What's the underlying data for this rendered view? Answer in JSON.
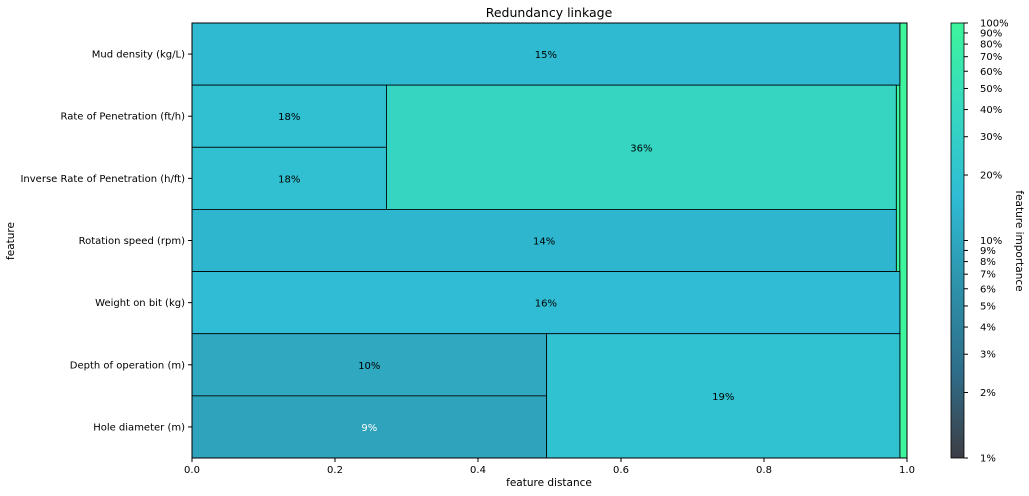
{
  "chart_data": {
    "type": "heatmap",
    "title": "Redundancy linkage",
    "xlabel": "feature distance",
    "ylabel": "feature",
    "xlim": [
      0,
      1
    ],
    "x_ticks": [
      "0.0",
      "0.2",
      "0.4",
      "0.6",
      "0.8",
      "1.0"
    ],
    "features": [
      "Mud density (kg/L)",
      "Rate of Penetration (ft/h)",
      "Inverse Rate of Penetration (h/ft)",
      "Rotation speed (rpm)",
      "Weight on bit (kg)",
      "Depth of operation (m)",
      "Hole diameter (m)"
    ],
    "blocks": [
      {
        "label": "15%",
        "importance": 15,
        "x0": 0.0,
        "x1": 0.99,
        "row_start": 0,
        "row_end": 0
      },
      {
        "label": "18%",
        "importance": 18,
        "x0": 0.0,
        "x1": 0.272,
        "row_start": 1,
        "row_end": 1
      },
      {
        "label": "18%",
        "importance": 18,
        "x0": 0.0,
        "x1": 0.272,
        "row_start": 2,
        "row_end": 2
      },
      {
        "label": "36%",
        "importance": 36,
        "x0": 0.272,
        "x1": 0.985,
        "row_start": 1,
        "row_end": 2
      },
      {
        "label": "14%",
        "importance": 14,
        "x0": 0.0,
        "x1": 0.985,
        "row_start": 3,
        "row_end": 3
      },
      {
        "label": "16%",
        "importance": 16,
        "x0": 0.0,
        "x1": 0.99,
        "row_start": 4,
        "row_end": 4
      },
      {
        "label": "10%",
        "importance": 10,
        "x0": 0.0,
        "x1": 0.496,
        "row_start": 5,
        "row_end": 5
      },
      {
        "label": "9%",
        "importance": 9,
        "x0": 0.0,
        "x1": 0.496,
        "row_start": 6,
        "row_end": 6
      },
      {
        "label": "19%",
        "importance": 19,
        "x0": 0.496,
        "x1": 0.99,
        "row_start": 5,
        "row_end": 6
      }
    ],
    "merge_strips": [
      {
        "x0": 0.985,
        "x1": 0.99,
        "row_start": 1,
        "row_end": 3
      },
      {
        "x0": 0.99,
        "x1": 1.0,
        "row_start": 0,
        "row_end": 6
      }
    ],
    "colorbar": {
      "label": "feature importance",
      "scale": "log",
      "range": [
        1,
        100
      ],
      "ticks": [
        "1%",
        "2%",
        "3%",
        "4%",
        "5%",
        "6%",
        "7%",
        "8%",
        "9%",
        "10%",
        "20%",
        "30%",
        "40%",
        "50%",
        "60%",
        "70%",
        "80%",
        "90%",
        "100%"
      ],
      "tick_values": [
        1,
        2,
        3,
        4,
        5,
        6,
        7,
        8,
        9,
        10,
        20,
        30,
        40,
        50,
        60,
        70,
        80,
        90,
        100
      ],
      "colors": [
        "#3d3d44",
        "#2e6e8a",
        "#2e93ac",
        "#2fbcd4",
        "#36d8c0",
        "#3df59c"
      ]
    }
  }
}
